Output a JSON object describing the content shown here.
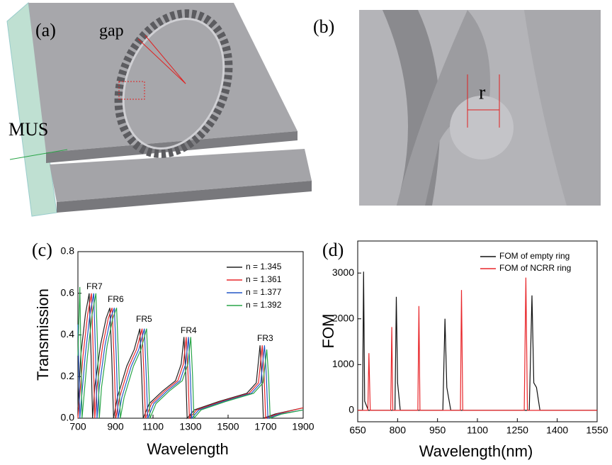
{
  "figures": {
    "a": {
      "label": "(a)",
      "annotations": [
        "gap",
        "MUS"
      ]
    },
    "b": {
      "label": "(b)",
      "annotations": [
        "r"
      ]
    }
  },
  "chart_data": [
    {
      "type": "line",
      "panel_label": "(c)",
      "xlabel": "Wavelength",
      "ylabel": "Transmission",
      "xlim": [
        700,
        1900
      ],
      "xticks": [
        700,
        900,
        1100,
        1300,
        1500,
        1700,
        1900
      ],
      "ylim": [
        0,
        0.8
      ],
      "yticks": [
        {
          "value": 0,
          "label": "0.0"
        },
        0.2,
        0.4,
        0.6,
        0.8
      ],
      "legend": "upper right",
      "annotations": [
        "FR7",
        "FR6",
        "FR5",
        "FR4",
        "FR3"
      ],
      "series": [
        {
          "name": "n = 1.345",
          "color": "#222222",
          "x": [
            700,
            715,
            740,
            760,
            770,
            778,
            790,
            820,
            850,
            870,
            880,
            890,
            910,
            960,
            1000,
            1030,
            1040,
            1048,
            1080,
            1150,
            1220,
            1250,
            1265,
            1275,
            1282,
            1320,
            1450,
            1600,
            1650,
            1670,
            1680,
            1688,
            1750,
            1900
          ],
          "values": [
            0.05,
            0.3,
            0.5,
            0.6,
            0.3,
            0.0,
            0.15,
            0.35,
            0.48,
            0.53,
            0.3,
            0.0,
            0.1,
            0.25,
            0.33,
            0.43,
            0.2,
            0.0,
            0.07,
            0.13,
            0.18,
            0.26,
            0.39,
            0.2,
            0.0,
            0.04,
            0.08,
            0.12,
            0.17,
            0.35,
            0.2,
            0.0,
            0.02,
            0.05
          ]
        },
        {
          "name": "n = 1.361",
          "color": "#e8262a",
          "x": [
            700,
            727,
            752,
            772,
            782,
            790,
            802,
            832,
            862,
            882,
            892,
            902,
            922,
            972,
            1012,
            1042,
            1052,
            1060,
            1092,
            1162,
            1232,
            1262,
            1277,
            1287,
            1294,
            1332,
            1462,
            1612,
            1662,
            1682,
            1692,
            1700,
            1762,
            1900
          ],
          "values": [
            0.0,
            0.3,
            0.5,
            0.6,
            0.3,
            0.0,
            0.15,
            0.35,
            0.48,
            0.53,
            0.3,
            0.0,
            0.1,
            0.25,
            0.33,
            0.43,
            0.2,
            0.0,
            0.07,
            0.13,
            0.18,
            0.26,
            0.39,
            0.2,
            0.0,
            0.04,
            0.08,
            0.12,
            0.17,
            0.35,
            0.2,
            0.0,
            0.02,
            0.05
          ]
        },
        {
          "name": "n = 1.377",
          "color": "#2457c5",
          "x": [
            700,
            710,
            739,
            764,
            784,
            794,
            802,
            814,
            844,
            874,
            894,
            904,
            914,
            934,
            984,
            1024,
            1054,
            1064,
            1072,
            1104,
            1174,
            1244,
            1274,
            1289,
            1299,
            1306,
            1344,
            1474,
            1624,
            1674,
            1694,
            1704,
            1712,
            1774,
            1900
          ],
          "values": [
            0.45,
            0.0,
            0.3,
            0.5,
            0.6,
            0.3,
            0.0,
            0.15,
            0.35,
            0.48,
            0.53,
            0.3,
            0.0,
            0.1,
            0.25,
            0.33,
            0.43,
            0.2,
            0.0,
            0.07,
            0.13,
            0.18,
            0.26,
            0.39,
            0.2,
            0.0,
            0.04,
            0.08,
            0.12,
            0.17,
            0.35,
            0.2,
            0.0,
            0.02,
            0.04
          ]
        },
        {
          "name": "n = 1.392",
          "color": "#2aa548",
          "x": [
            700,
            710,
            722,
            751,
            776,
            796,
            806,
            814,
            826,
            856,
            886,
            906,
            916,
            926,
            946,
            996,
            1036,
            1066,
            1076,
            1084,
            1116,
            1186,
            1256,
            1286,
            1301,
            1311,
            1318,
            1356,
            1486,
            1636,
            1686,
            1706,
            1716,
            1724,
            1786,
            1900
          ],
          "values": [
            0.3,
            0.63,
            0.0,
            0.3,
            0.5,
            0.6,
            0.3,
            0.0,
            0.15,
            0.35,
            0.48,
            0.53,
            0.3,
            0.0,
            0.1,
            0.25,
            0.33,
            0.43,
            0.2,
            0.0,
            0.07,
            0.13,
            0.18,
            0.26,
            0.39,
            0.2,
            0.0,
            0.04,
            0.08,
            0.12,
            0.17,
            0.33,
            0.2,
            0.0,
            0.02,
            0.04
          ]
        }
      ]
    },
    {
      "type": "line",
      "panel_label": "(d)",
      "xlabel": "Wavelength(nm)",
      "ylabel": "FOM",
      "xlim": [
        650,
        1550
      ],
      "xticks": [
        650,
        800,
        950,
        1100,
        1250,
        1400,
        1550
      ],
      "ylim": [
        -250,
        3700
      ],
      "yticks": [
        0,
        1000,
        2000,
        3000
      ],
      "legend": "upper right",
      "series": [
        {
          "name": "FOM of empty ring",
          "color": "#111111",
          "x": [
            650,
            668,
            672,
            676,
            690,
            790,
            795,
            800,
            810,
            970,
            978,
            985,
            1000,
            1295,
            1305,
            1312,
            1322,
            1335,
            1550
          ],
          "values": [
            0,
            0,
            3030,
            200,
            0,
            0,
            2480,
            600,
            0,
            0,
            2000,
            500,
            0,
            0,
            2510,
            600,
            500,
            0,
            0
          ]
        },
        {
          "name": "FOM of NCRR ring",
          "color": "#e8262a",
          "x": [
            650,
            688,
            692,
            697,
            774,
            778,
            782,
            876,
            880,
            884,
            1036,
            1040,
            1045,
            1276,
            1282,
            1288,
            1550
          ],
          "values": [
            0,
            0,
            1250,
            0,
            0,
            1820,
            0,
            0,
            2280,
            0,
            0,
            2630,
            0,
            0,
            2900,
            0,
            0
          ]
        }
      ]
    }
  ]
}
